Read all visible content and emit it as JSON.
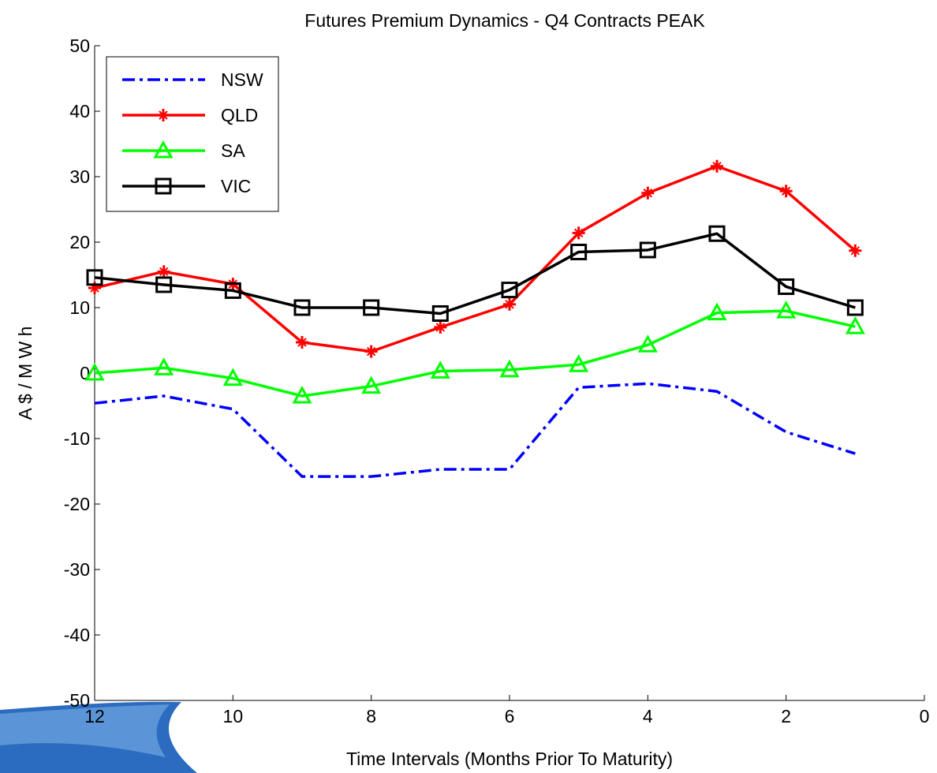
{
  "chart_data": {
    "type": "line",
    "title": "Futures Premium Dynamics - Q4 Contracts PEAK",
    "xlabel": "Time Intervals (Months Prior To Maturity)",
    "ylabel": "A $ / M W h",
    "xlim": [
      12,
      0
    ],
    "ylim": [
      -50,
      50
    ],
    "xticks": [
      12,
      10,
      8,
      6,
      4,
      2,
      0
    ],
    "yticks": [
      50,
      40,
      30,
      20,
      10,
      0,
      -10,
      -20,
      -30,
      -40,
      -50
    ],
    "x": [
      12,
      11,
      10,
      9,
      8,
      7,
      6,
      5,
      4,
      3,
      2,
      1
    ],
    "grid": false,
    "legend_position": "top-left",
    "series": [
      {
        "name": "NSW",
        "color": "#0000ff",
        "style": "dash-dot",
        "marker": "none",
        "values": [
          -4.6,
          -3.5,
          -5.5,
          -15.8,
          -15.8,
          -14.7,
          -14.7,
          -2.2,
          -1.6,
          -2.8,
          -9.0,
          -12.3
        ]
      },
      {
        "name": "QLD",
        "color": "#ff0000",
        "style": "solid",
        "marker": "plus",
        "values": [
          13.0,
          15.5,
          13.6,
          4.7,
          3.3,
          7.0,
          10.5,
          21.4,
          27.5,
          31.6,
          27.8,
          18.7
        ]
      },
      {
        "name": "SA",
        "color": "#00ff00",
        "style": "solid",
        "marker": "triangle",
        "values": [
          0.0,
          0.8,
          -0.8,
          -3.5,
          -2.0,
          0.3,
          0.5,
          1.3,
          4.3,
          9.2,
          9.5,
          7.1
        ]
      },
      {
        "name": "VIC",
        "color": "#000000",
        "style": "solid",
        "marker": "square",
        "values": [
          14.6,
          13.5,
          12.6,
          10.0,
          10.0,
          9.1,
          12.7,
          18.5,
          18.8,
          21.3,
          13.2,
          10.0
        ]
      }
    ]
  }
}
